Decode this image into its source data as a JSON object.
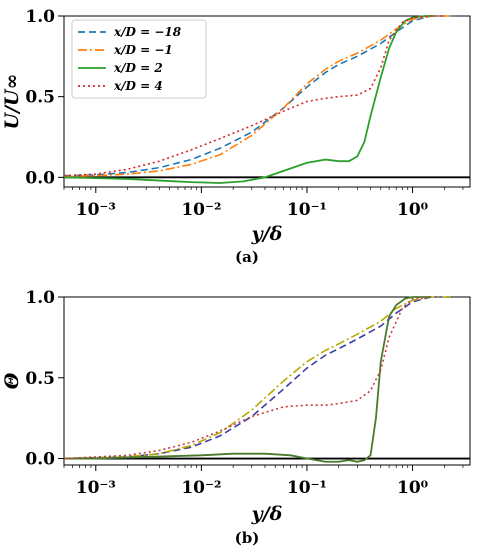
{
  "chart_data": [
    {
      "type": "line",
      "panel_label": "(a)",
      "xlabel": "y/δ",
      "ylabel": "U/U∞",
      "xscale": "log",
      "xlim": [
        0.0005,
        3.5
      ],
      "ylim": [
        -0.06,
        1.0
      ],
      "xticks": [
        {
          "value": 0.001,
          "label": "10⁻³"
        },
        {
          "value": 0.01,
          "label": "10⁻²"
        },
        {
          "value": 0.1,
          "label": "10⁻¹"
        },
        {
          "value": 1,
          "label": "10⁰"
        }
      ],
      "yticks": [
        {
          "value": 0.0,
          "label": "0.0"
        },
        {
          "value": 0.5,
          "label": "0.5"
        },
        {
          "value": 1.0,
          "label": "1.0"
        }
      ],
      "hline": 0,
      "legend": {
        "position": "top-left"
      },
      "series": [
        {
          "name": "x/D = −18",
          "color": "#1f77b4",
          "style": "dashed",
          "x": [
            0.0005,
            0.001,
            0.002,
            0.004,
            0.008,
            0.015,
            0.03,
            0.06,
            0.1,
            0.15,
            0.2,
            0.3,
            0.5,
            0.7,
            1.0,
            1.5,
            2.5
          ],
          "y": [
            0.01,
            0.015,
            0.03,
            0.06,
            0.11,
            0.18,
            0.28,
            0.43,
            0.56,
            0.65,
            0.7,
            0.75,
            0.83,
            0.9,
            0.97,
            1.0,
            1.0
          ]
        },
        {
          "name": "x/D = −1",
          "color": "#ff7f0e",
          "style": "dashdot",
          "x": [
            0.0005,
            0.001,
            0.002,
            0.004,
            0.008,
            0.015,
            0.03,
            0.06,
            0.1,
            0.15,
            0.2,
            0.3,
            0.5,
            0.7,
            1.0,
            1.5,
            2.5
          ],
          "y": [
            0.005,
            0.01,
            0.02,
            0.04,
            0.08,
            0.14,
            0.26,
            0.43,
            0.58,
            0.67,
            0.72,
            0.77,
            0.85,
            0.92,
            0.98,
            1.0,
            1.0
          ]
        },
        {
          "name": "x/D = 2",
          "color": "#2ca02c",
          "style": "solid",
          "x": [
            0.0005,
            0.001,
            0.002,
            0.004,
            0.008,
            0.015,
            0.025,
            0.04,
            0.06,
            0.1,
            0.15,
            0.2,
            0.25,
            0.3,
            0.35,
            0.4,
            0.5,
            0.6,
            0.7,
            0.85,
            1.0,
            1.3,
            1.6
          ],
          "y": [
            0.0,
            -0.005,
            -0.01,
            -0.02,
            -0.03,
            -0.035,
            -0.025,
            0.0,
            0.04,
            0.09,
            0.11,
            0.1,
            0.1,
            0.13,
            0.22,
            0.38,
            0.62,
            0.8,
            0.9,
            0.97,
            0.99,
            1.0,
            1.0
          ]
        },
        {
          "name": "x/D = 4",
          "color": "#d62728",
          "style": "dotted",
          "x": [
            0.0005,
            0.001,
            0.002,
            0.004,
            0.008,
            0.015,
            0.03,
            0.06,
            0.1,
            0.15,
            0.2,
            0.3,
            0.4,
            0.5,
            0.6,
            0.8,
            1.0,
            1.5,
            2.0
          ],
          "y": [
            0.01,
            0.02,
            0.05,
            0.1,
            0.17,
            0.24,
            0.32,
            0.41,
            0.47,
            0.49,
            0.5,
            0.51,
            0.55,
            0.68,
            0.85,
            0.96,
            0.99,
            1.0,
            1.0
          ]
        }
      ]
    },
    {
      "type": "line",
      "panel_label": "(b)",
      "xlabel": "y/δ",
      "ylabel": "Θ",
      "xscale": "log",
      "xlim": [
        0.0005,
        3.5
      ],
      "ylim": [
        -0.04,
        1.0
      ],
      "xticks": [
        {
          "value": 0.001,
          "label": "10⁻³"
        },
        {
          "value": 0.01,
          "label": "10⁻²"
        },
        {
          "value": 0.1,
          "label": "10⁻¹"
        },
        {
          "value": 1,
          "label": "10⁰"
        }
      ],
      "yticks": [
        {
          "value": 0.0,
          "label": "0.0"
        },
        {
          "value": 0.5,
          "label": "0.5"
        },
        {
          "value": 1.0,
          "label": "1.0"
        }
      ],
      "hline": 0,
      "series": [
        {
          "color": "#3b3fa0",
          "style": "dashed",
          "x": [
            0.0005,
            0.001,
            0.002,
            0.004,
            0.008,
            0.015,
            0.03,
            0.06,
            0.1,
            0.15,
            0.2,
            0.3,
            0.5,
            0.7,
            1.0,
            1.5,
            2.5
          ],
          "y": [
            0.0,
            0.005,
            0.01,
            0.03,
            0.07,
            0.14,
            0.26,
            0.43,
            0.56,
            0.64,
            0.68,
            0.74,
            0.82,
            0.9,
            0.97,
            1.0,
            1.0
          ]
        },
        {
          "color": "#b8a800",
          "style": "dashdot",
          "x": [
            0.0005,
            0.001,
            0.002,
            0.004,
            0.008,
            0.015,
            0.03,
            0.06,
            0.1,
            0.15,
            0.2,
            0.3,
            0.5,
            0.7,
            1.0,
            1.5,
            2.5
          ],
          "y": [
            0.0,
            0.005,
            0.01,
            0.03,
            0.08,
            0.16,
            0.3,
            0.48,
            0.6,
            0.67,
            0.71,
            0.77,
            0.85,
            0.93,
            0.98,
            1.0,
            1.0
          ]
        },
        {
          "color": "#4a7a2c",
          "style": "solid",
          "x": [
            0.0005,
            0.001,
            0.003,
            0.01,
            0.02,
            0.04,
            0.07,
            0.1,
            0.15,
            0.2,
            0.25,
            0.3,
            0.35,
            0.4,
            0.45,
            0.5,
            0.6,
            0.7,
            0.85,
            1.0,
            1.5
          ],
          "y": [
            0.0,
            0.0,
            0.01,
            0.02,
            0.03,
            0.03,
            0.02,
            0.0,
            -0.02,
            -0.02,
            -0.01,
            -0.02,
            -0.01,
            0.02,
            0.25,
            0.6,
            0.88,
            0.95,
            0.99,
            1.0,
            1.0
          ]
        },
        {
          "color": "#c43a3a",
          "style": "dotted",
          "x": [
            0.0005,
            0.001,
            0.002,
            0.004,
            0.008,
            0.015,
            0.03,
            0.06,
            0.1,
            0.15,
            0.2,
            0.3,
            0.4,
            0.5,
            0.6,
            0.8,
            1.0,
            1.5
          ],
          "y": [
            0.0,
            0.01,
            0.02,
            0.05,
            0.1,
            0.17,
            0.26,
            0.32,
            0.33,
            0.33,
            0.34,
            0.36,
            0.42,
            0.55,
            0.75,
            0.93,
            0.99,
            1.0
          ]
        }
      ]
    }
  ]
}
